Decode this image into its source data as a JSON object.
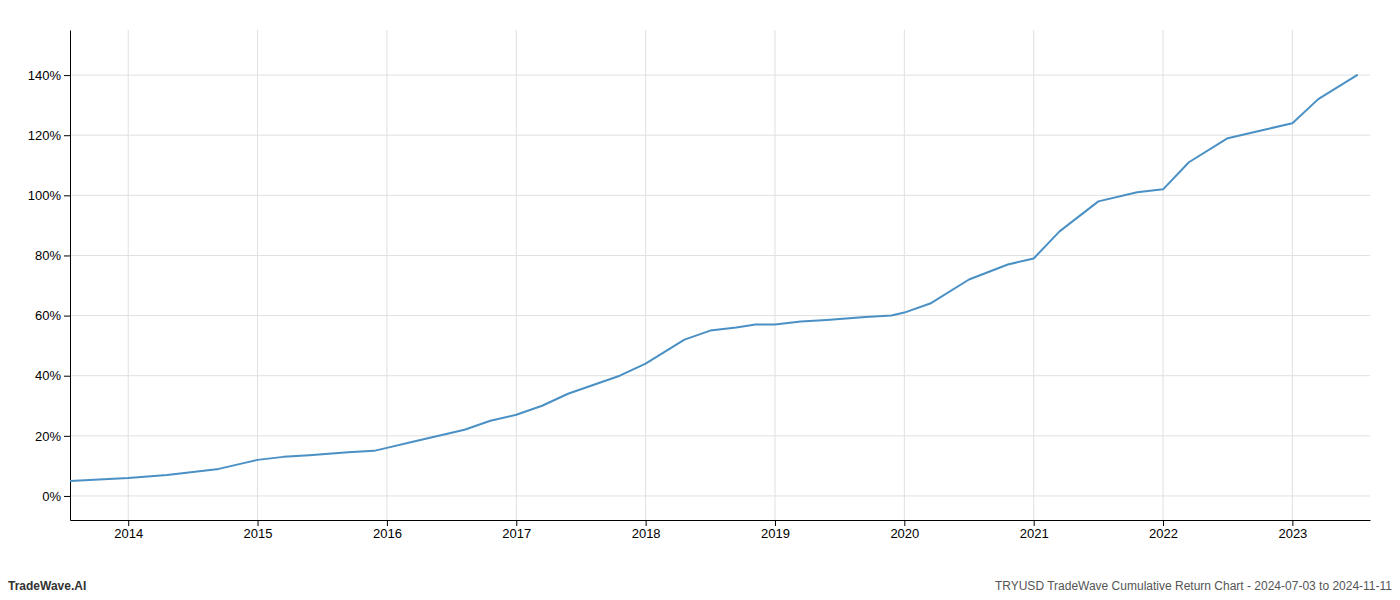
{
  "chart_data": {
    "type": "line",
    "annotations": [
      "TradeWave.AI",
      "TRYUSD TradeWave Cumulative Return Chart - 2024-07-03 to 2024-11-11"
    ],
    "color": "#4a90c4",
    "grid": true,
    "x": [
      2013.55,
      2014.0,
      2014.15,
      2014.3,
      2014.5,
      2014.7,
      2014.9,
      2015.0,
      2015.2,
      2015.4,
      2015.7,
      2015.9,
      2016.0,
      2016.2,
      2016.4,
      2016.6,
      2016.8,
      2017.0,
      2017.2,
      2017.4,
      2017.6,
      2017.8,
      2018.0,
      2018.15,
      2018.3,
      2018.5,
      2018.7,
      2018.85,
      2018.95,
      2019.0,
      2019.2,
      2019.4,
      2019.7,
      2019.9,
      2020.0,
      2020.2,
      2020.5,
      2020.8,
      2021.0,
      2021.2,
      2021.5,
      2021.8,
      2022.0,
      2022.2,
      2022.5,
      2022.8,
      2023.0,
      2023.2,
      2023.5
    ],
    "values": [
      5,
      6,
      6.5,
      7,
      8,
      9,
      11,
      12,
      13,
      13.5,
      14.5,
      15,
      16,
      18,
      20,
      22,
      25,
      27,
      30,
      34,
      37,
      40,
      44,
      48,
      52,
      55,
      56,
      57,
      57,
      57,
      58,
      58.5,
      59.5,
      60,
      61,
      64,
      72,
      77,
      79,
      88,
      98,
      101,
      102,
      111,
      119,
      122,
      124,
      132,
      140
    ],
    "xlim": [
      2013.55,
      2023.6
    ],
    "xticks": [
      2014,
      2015,
      2016,
      2017,
      2018,
      2019,
      2020,
      2021,
      2022,
      2023
    ],
    "ylim": [
      -8,
      155
    ],
    "yticks": [
      {
        "value": 0,
        "label": "0%"
      },
      {
        "value": 20,
        "label": "20%"
      },
      {
        "value": 40,
        "label": "40%"
      },
      {
        "value": 60,
        "label": "60%"
      },
      {
        "value": 80,
        "label": "80%"
      },
      {
        "value": 100,
        "label": "100%"
      },
      {
        "value": 120,
        "label": "120%"
      },
      {
        "value": 140,
        "label": "140%"
      }
    ]
  }
}
